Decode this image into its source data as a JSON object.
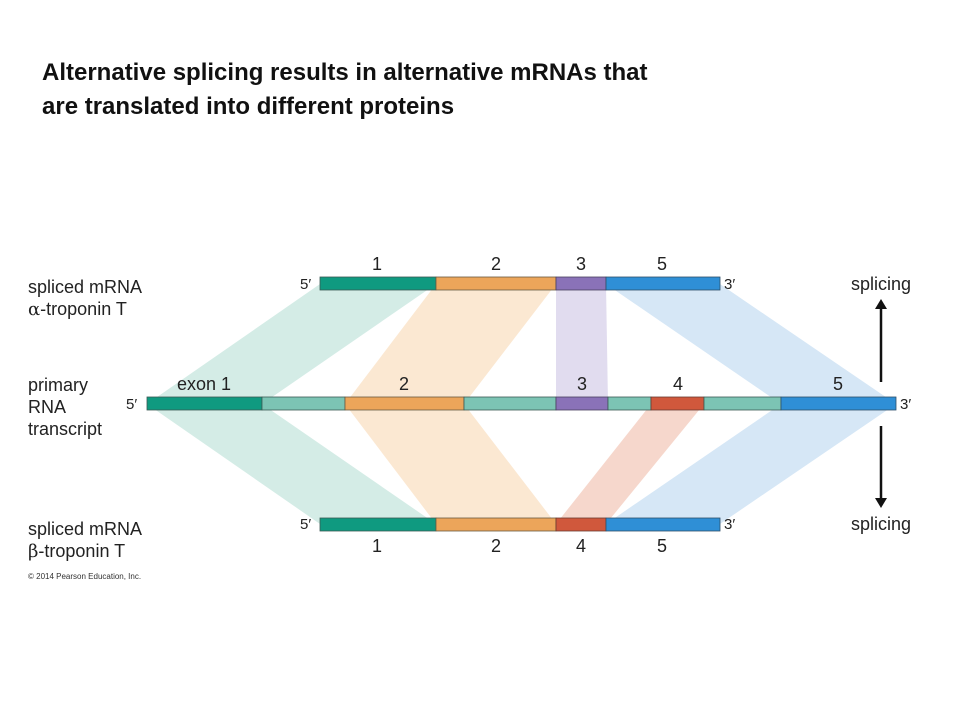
{
  "title": {
    "line1": "Alternative splicing results in alternative mRNAs that",
    "line2": "are translated into different proteins"
  },
  "labels": {
    "alpha": {
      "line1": "spliced mRNA",
      "greek": "α",
      "line2_rest": "-troponin T"
    },
    "primary": {
      "line1": "primary",
      "line2": "RNA",
      "line3": "transcript"
    },
    "beta": {
      "line1": "spliced mRNA",
      "greek": "β",
      "line2_rest": "-troponin T"
    }
  },
  "ends": {
    "five": "5′",
    "three": "3′"
  },
  "splicing": {
    "top": "splicing",
    "bottom": "splicing"
  },
  "exon_labels": {
    "alpha": [
      "1",
      "2",
      "3",
      "5"
    ],
    "primary": [
      "exon 1",
      "2",
      "3",
      "4",
      "5"
    ],
    "beta": [
      "1",
      "2",
      "4",
      "5"
    ]
  },
  "colors": {
    "exon1": "#0f9a80",
    "exon2": "#eca55a",
    "exon3": "#8a72b8",
    "exon4": "#d0583c",
    "exon5": "#2f8fd6",
    "intron": "#7cc4b4"
  },
  "copyright": "© 2014 Pearson Education, Inc."
}
